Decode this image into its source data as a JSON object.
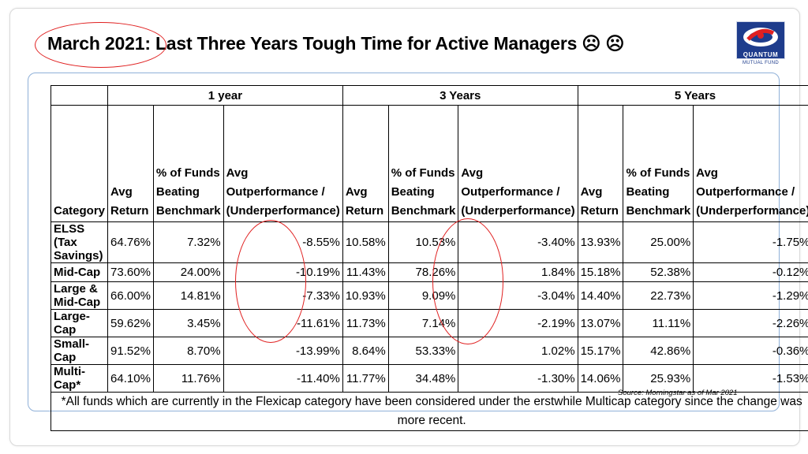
{
  "slide": {
    "title_highlight": "March 2021",
    "title_rest": ": Last Three Years Tough Time for Active Managers ☹ ☹",
    "logo_word": "QUANTUM",
    "logo_sub": "MUTUAL FUND",
    "source": "Source:  Morningstar as of  Mar 2021"
  },
  "table": {
    "periods": [
      "1 year",
      "3 Years",
      "5 Years"
    ],
    "category_header": "Category",
    "metric_headers": [
      "Avg Return",
      "% of Funds Beating Benchmark",
      "Avg Outperformance / (Underperformance)"
    ],
    "rows": [
      {
        "category": "ELSS (Tax Savings)",
        "values": [
          "64.76%",
          "7.32%",
          "-8.55%",
          "10.58%",
          "10.53%",
          "-3.40%",
          "13.93%",
          "25.00%",
          "-1.75%"
        ]
      },
      {
        "category": "Mid-Cap",
        "values": [
          "73.60%",
          "24.00%",
          "-10.19%",
          "11.43%",
          "78.26%",
          "1.84%",
          "15.18%",
          "52.38%",
          "-0.12%"
        ]
      },
      {
        "category": "Large & Mid-Cap",
        "values": [
          "66.00%",
          "14.81%",
          "-7.33%",
          "10.93%",
          "9.09%",
          "-3.04%",
          "14.40%",
          "22.73%",
          "-1.29%"
        ]
      },
      {
        "category": "Large-Cap",
        "values": [
          "59.62%",
          "3.45%",
          "-11.61%",
          "11.73%",
          "7.14%",
          "-2.19%",
          "13.07%",
          "11.11%",
          "-2.26%"
        ]
      },
      {
        "category": "Small-Cap",
        "values": [
          "91.52%",
          "8.70%",
          "-13.99%",
          "8.64%",
          "53.33%",
          "1.02%",
          "15.17%",
          "42.86%",
          "-0.36%"
        ]
      },
      {
        "category": "Multi-Cap*",
        "values": [
          "64.10%",
          "11.76%",
          "-11.40%",
          "11.77%",
          "34.48%",
          "-1.30%",
          "14.06%",
          "25.93%",
          "-1.53%"
        ]
      }
    ],
    "footnote": "*All funds which are currently in the Flexicap category have been considered under the erstwhile Multicap category since the change was more recent."
  },
  "colors": {
    "accent_red": "#e02020",
    "panel_border": "#8fb0d8",
    "logo_blue": "#1e3c8c"
  }
}
